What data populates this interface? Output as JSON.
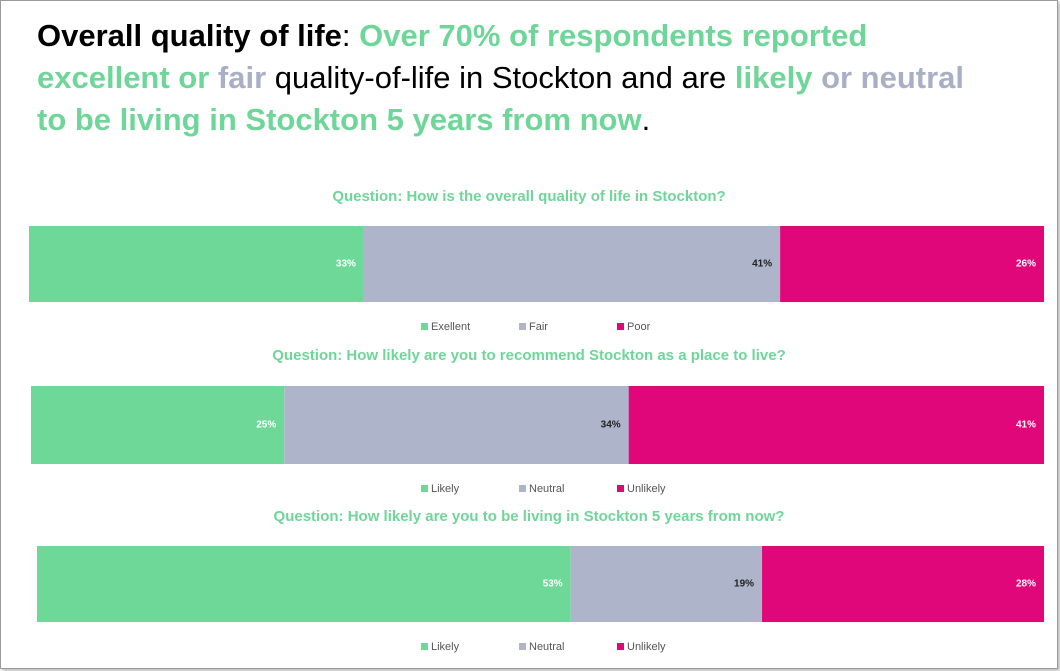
{
  "headline": {
    "segments": [
      {
        "text": "Overall quality of life",
        "color": "#000000",
        "bold": true
      },
      {
        "text": ": ",
        "color": "#000000",
        "bold": false
      },
      {
        "text": "Over 70% of respondents reported excellent or",
        "color": "#6fd699",
        "bold": true
      },
      {
        "text": " fair",
        "color": "#a9b0c6",
        "bold": true
      },
      {
        "text": " quality-of-life in Stockton and are",
        "color": "#000000",
        "bold": false
      },
      {
        "text": " likely",
        "color": "#6fd699",
        "bold": true
      },
      {
        "text": " or neutral",
        "color": "#a9b0c6",
        "bold": true
      },
      {
        "text": " to be living in Stockton 5 years from now",
        "color": "#6fd699",
        "bold": true
      },
      {
        "text": ".",
        "color": "#000000",
        "bold": false
      }
    ]
  },
  "chart_data": [
    {
      "type": "bar",
      "stacked": true,
      "orientation": "horizontal",
      "title": "Question: How is the overall quality of life in Stockton?",
      "title_color": "#6fd699",
      "series": [
        {
          "name": "Exellent",
          "color": "#6dd898",
          "values": [
            33
          ],
          "value_labels": [
            "33%"
          ]
        },
        {
          "name": "Fair",
          "color": "#aeb4c9",
          "values": [
            41
          ],
          "value_labels": [
            "41%"
          ]
        },
        {
          "name": "Poor",
          "color": "#e0077a",
          "values": [
            26
          ],
          "value_labels": [
            "26%"
          ]
        }
      ]
    },
    {
      "type": "bar",
      "stacked": true,
      "orientation": "horizontal",
      "title": "Question: How likely are you to recommend Stockton as a place to live?",
      "title_color": "#6fd699",
      "series": [
        {
          "name": "Likely",
          "color": "#6dd898",
          "values": [
            25
          ],
          "value_labels": [
            "25%"
          ]
        },
        {
          "name": "Neutral",
          "color": "#aeb4c9",
          "values": [
            34
          ],
          "value_labels": [
            "34%"
          ]
        },
        {
          "name": "Unlikely",
          "color": "#e0077a",
          "values": [
            41
          ],
          "value_labels": [
            "41%"
          ]
        }
      ]
    },
    {
      "type": "bar",
      "stacked": true,
      "orientation": "horizontal",
      "title": "Question: How likely are you to be living in Stockton 5 years from now?",
      "title_color": "#6fd699",
      "series": [
        {
          "name": "Likely",
          "color": "#6dd898",
          "values": [
            53
          ],
          "value_labels": [
            "53%"
          ]
        },
        {
          "name": "Neutral",
          "color": "#aeb4c9",
          "values": [
            19
          ],
          "value_labels": [
            "19%"
          ]
        },
        {
          "name": "Unlikely",
          "color": "#e0077a",
          "values": [
            28
          ],
          "value_labels": [
            "28%"
          ]
        }
      ]
    }
  ]
}
